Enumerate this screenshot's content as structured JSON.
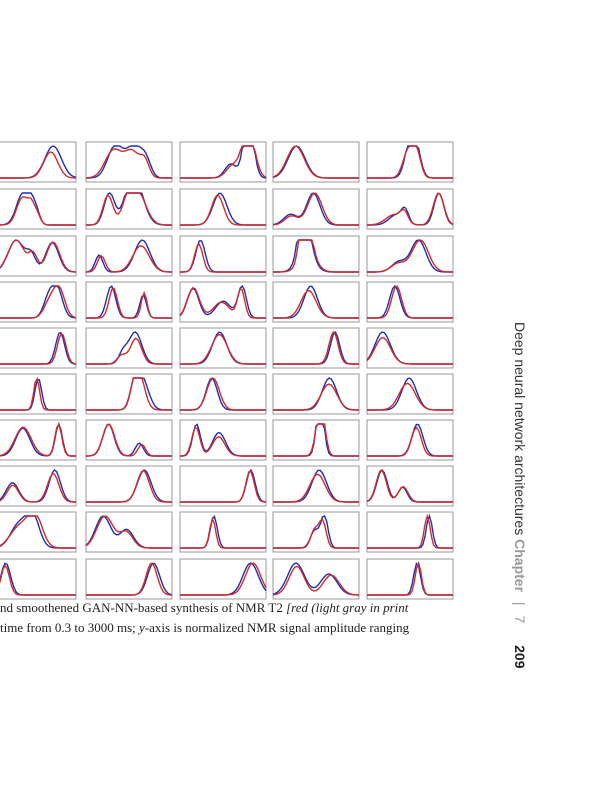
{
  "figure": {
    "caption_line1": {
      "prefix": "nd smoothened GAN-NN-based synthesis of NMR T2 ",
      "italic": "[red (light gray in print"
    },
    "caption_line2": {
      "prefix": " time from 0.3 to 3000 ms; ",
      "italic": "y",
      "suffix": "-axis is normalized NMR signal amplitude ranging"
    }
  },
  "running_head": {
    "title": "Deep neural network architectures",
    "chapter_label": "Chapter",
    "separator": "|",
    "chapter_number": "7",
    "page_number": "209"
  },
  "colors": {
    "original": "#1f2fb0",
    "synthetic": "#d42a2a",
    "frame": "#9a9a9a"
  }
}
